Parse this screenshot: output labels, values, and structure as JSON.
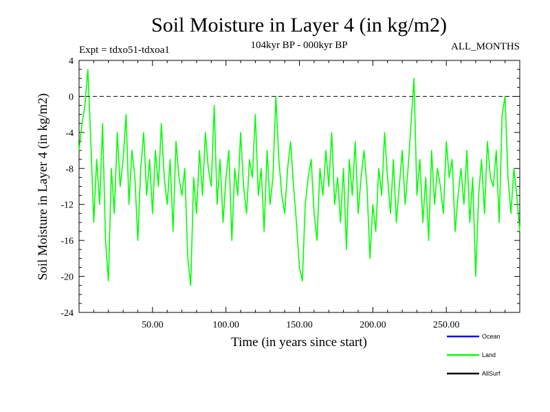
{
  "chart_data": {
    "type": "line",
    "title": "Soil Moisture in Layer 4 (in kg/m2)",
    "subtitle": "104kyr BP - 000kyr BP",
    "experiment_label": "Expt = tdxo51-tdxoa1",
    "period_label": "ALL_MONTHS",
    "xlabel": "Time (in years since start)",
    "ylabel": "Soil Moisture in Layer 4 (in kg/m2)",
    "xlim": [
      0,
      300
    ],
    "ylim": [
      -24,
      4
    ],
    "x_ticks": [
      50,
      100,
      150,
      200,
      250
    ],
    "x_tick_labels": [
      "50.00",
      "100.00",
      "150.00",
      "200.00",
      "250.00"
    ],
    "y_ticks": [
      4,
      0,
      -4,
      -8,
      -12,
      -16,
      -20,
      -24
    ],
    "y_tick_labels": [
      "4",
      "0",
      "-4",
      "-8",
      "-12",
      "-16",
      "-20",
      "-24"
    ],
    "reference_line": {
      "y": 0,
      "style": "dashed"
    },
    "legend": [
      {
        "name": "Ocean",
        "color": "#0000ff"
      },
      {
        "name": "Land",
        "color": "#00ff00"
      },
      {
        "name": "AllSurf",
        "color": "#000000"
      }
    ],
    "series": [
      {
        "name": "Land",
        "color": "#00ff00",
        "x": [
          0,
          2,
          4,
          6,
          8,
          10,
          12,
          14,
          16,
          18,
          20,
          22,
          24,
          26,
          28,
          30,
          32,
          34,
          36,
          38,
          40,
          42,
          44,
          46,
          48,
          50,
          52,
          54,
          56,
          58,
          60,
          62,
          64,
          66,
          68,
          70,
          72,
          74,
          76,
          78,
          80,
          82,
          84,
          86,
          88,
          90,
          92,
          94,
          96,
          98,
          100,
          102,
          104,
          106,
          108,
          110,
          112,
          114,
          116,
          118,
          120,
          122,
          124,
          126,
          128,
          130,
          132,
          134,
          136,
          138,
          140,
          142,
          144,
          146,
          148,
          150,
          152,
          154,
          156,
          158,
          160,
          162,
          164,
          166,
          168,
          170,
          172,
          174,
          176,
          178,
          180,
          182,
          184,
          186,
          188,
          190,
          192,
          194,
          196,
          198,
          200,
          202,
          204,
          206,
          208,
          210,
          212,
          214,
          216,
          218,
          220,
          222,
          224,
          226,
          228,
          230,
          232,
          234,
          236,
          238,
          240,
          242,
          244,
          246,
          248,
          250,
          252,
          254,
          256,
          258,
          260,
          262,
          264,
          266,
          268,
          270,
          272,
          274,
          276,
          278,
          280,
          282,
          284,
          286,
          288,
          290,
          292,
          294,
          296,
          298,
          300
        ],
        "values": [
          -6,
          -3,
          -1,
          3,
          -5,
          -14,
          -7,
          -12,
          -3,
          -16,
          -20.5,
          -8,
          -13,
          -4,
          -10,
          -7,
          -2,
          -12,
          -6,
          -9,
          -16,
          -8,
          -4,
          -11,
          -7,
          -13,
          -6,
          -10,
          -3,
          -9,
          -12,
          -7,
          -15,
          -5,
          -9,
          -11,
          -8,
          -18,
          -21,
          -9,
          -13,
          -6,
          -11,
          -4,
          -8,
          -10,
          -1,
          -12,
          -7,
          -14,
          -9,
          -6,
          -16,
          -8,
          -11,
          -4,
          -10,
          -13,
          -7,
          -9,
          -2,
          -11,
          -8,
          -15,
          -6,
          -12,
          -9,
          0,
          -7,
          -11,
          -13,
          -8,
          -5,
          -10,
          -14,
          -19,
          -20.5,
          -12,
          -9,
          -7,
          -13,
          -16,
          -8,
          -11,
          -6,
          -10,
          -4,
          -12,
          -9,
          -14,
          -8,
          -17,
          -7,
          -11,
          -5,
          -13,
          -9,
          -6,
          -10,
          -18,
          -12,
          -15,
          -8,
          -11,
          -4,
          -9,
          -13,
          -7,
          -14,
          -10,
          -6,
          -12,
          -8,
          -3,
          2,
          -11,
          -7,
          -14,
          -9,
          -16,
          -6,
          -12,
          -8,
          -10,
          -13,
          -5,
          -9,
          -7,
          -15,
          -11,
          -8,
          -12,
          -6,
          -14,
          -9,
          -20,
          -11,
          -7,
          -13,
          -5,
          -9,
          -10,
          -6,
          -14,
          -2,
          0,
          -9,
          -13,
          -8,
          -11,
          -15
        ]
      }
    ]
  }
}
